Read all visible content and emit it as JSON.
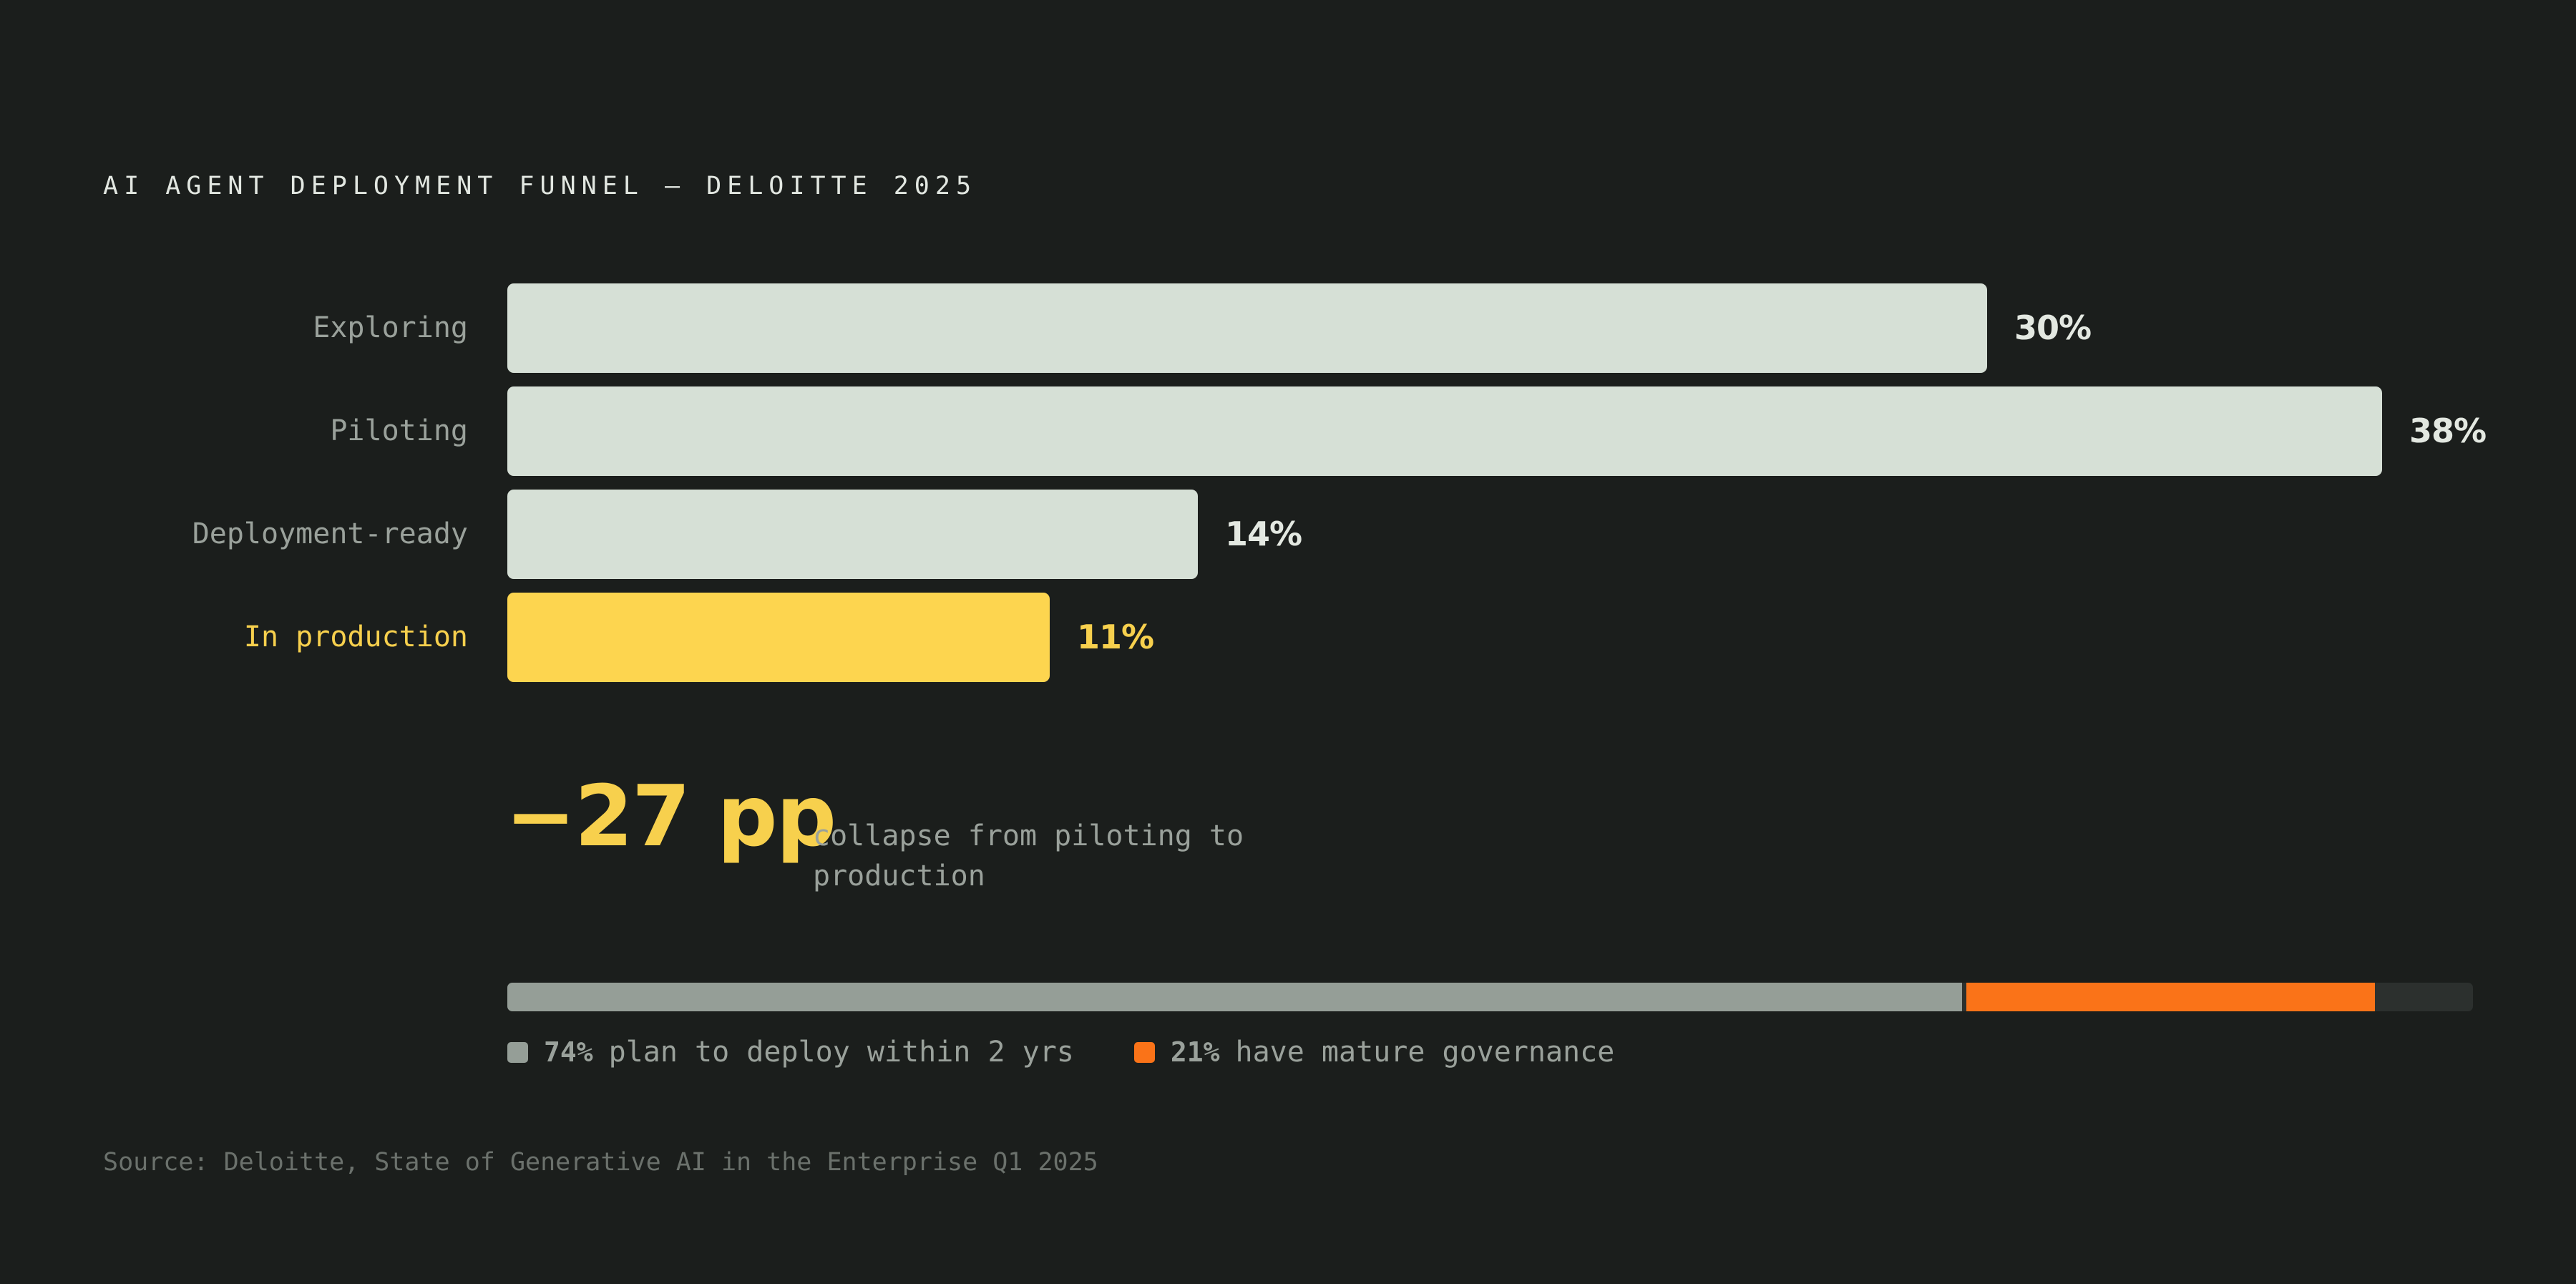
{
  "colors": {
    "background": "#1b1e1c",
    "bar": "#d6e0d6",
    "highlight": "#fdd54f",
    "plan_segment": "#959e97",
    "governance_segment": "#fa7318",
    "track": "#2c302e"
  },
  "chart_data": {
    "type": "bar",
    "orientation": "horizontal",
    "title": "AI AGENT DEPLOYMENT FUNNEL — DELOITTE 2025",
    "categories": [
      "Exploring",
      "Piloting",
      "Deployment-ready",
      "In production"
    ],
    "values": [
      30,
      38,
      14,
      11
    ],
    "value_labels": [
      "30%",
      "38%",
      "14%",
      "11%"
    ],
    "highlighted_category": "In production",
    "xlim": [
      0,
      38
    ],
    "grid": false
  },
  "callout": {
    "value": "−27 pp",
    "description": "collapse from piloting to production"
  },
  "progress": {
    "max": 100,
    "segments": [
      {
        "value": 74,
        "label_value": "74%",
        "text": "plan to deploy within 2 yrs"
      },
      {
        "value": 21,
        "label_value": "21%",
        "text": "have mature governance"
      }
    ]
  },
  "source": "Source: Deloitte, State of Generative AI in the Enterprise Q1 2025"
}
